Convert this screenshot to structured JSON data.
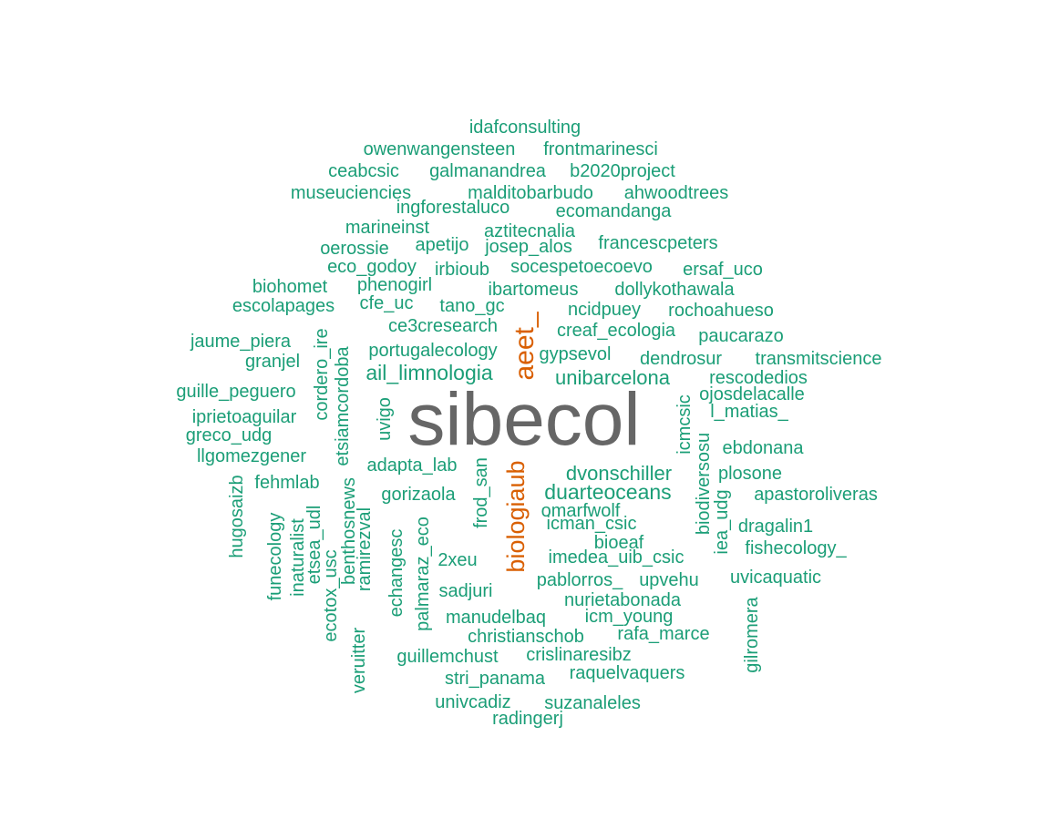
{
  "colors": {
    "large": "#666666",
    "medium": "#d95f02",
    "small": "#1b9e77"
  },
  "words": [
    {
      "text": "sibecol",
      "group": "large"
    },
    {
      "text": "aeet_",
      "group": "medium"
    },
    {
      "text": "biologiaub",
      "group": "medium"
    },
    {
      "text": "idafconsulting",
      "group": "small"
    },
    {
      "text": "owenwangensteen",
      "group": "small"
    },
    {
      "text": "frontmarinesci",
      "group": "small"
    },
    {
      "text": "ceabcsic",
      "group": "small"
    },
    {
      "text": "galmanandrea",
      "group": "small"
    },
    {
      "text": "b2020project",
      "group": "small"
    },
    {
      "text": "museuciencies",
      "group": "small"
    },
    {
      "text": "malditobarbudo",
      "group": "small"
    },
    {
      "text": "ahwoodtrees",
      "group": "small"
    },
    {
      "text": "ingforestaluco",
      "group": "small"
    },
    {
      "text": "ecomandanga",
      "group": "small"
    },
    {
      "text": "marineinst",
      "group": "small"
    },
    {
      "text": "aztitecnalia",
      "group": "small"
    },
    {
      "text": "oerossie",
      "group": "small"
    },
    {
      "text": "apetijo",
      "group": "small"
    },
    {
      "text": "josep_alos",
      "group": "small"
    },
    {
      "text": "francescpeters",
      "group": "small"
    },
    {
      "text": "eco_godoy",
      "group": "small"
    },
    {
      "text": "irbioub",
      "group": "small"
    },
    {
      "text": "socespetoecoevo",
      "group": "small"
    },
    {
      "text": "ersaf_uco",
      "group": "small"
    },
    {
      "text": "biohomet",
      "group": "small"
    },
    {
      "text": "phenogirl",
      "group": "small"
    },
    {
      "text": "ibartomeus",
      "group": "small"
    },
    {
      "text": "dollykothawala",
      "group": "small"
    },
    {
      "text": "escolapages",
      "group": "small"
    },
    {
      "text": "cfe_uc",
      "group": "small"
    },
    {
      "text": "tano_gc",
      "group": "small"
    },
    {
      "text": "ncidpuey",
      "group": "small"
    },
    {
      "text": "rochoahueso",
      "group": "small"
    },
    {
      "text": "ce3cresearch",
      "group": "small"
    },
    {
      "text": "creaf_ecologia",
      "group": "small"
    },
    {
      "text": "paucarazo",
      "group": "small"
    },
    {
      "text": "jaume_piera",
      "group": "small"
    },
    {
      "text": "portugalecology",
      "group": "small"
    },
    {
      "text": "gypsevol",
      "group": "small"
    },
    {
      "text": "dendrosur",
      "group": "small"
    },
    {
      "text": "transmitscience",
      "group": "small"
    },
    {
      "text": "granjel",
      "group": "small"
    },
    {
      "text": "ail_limnologia",
      "group": "small"
    },
    {
      "text": "unibarcelona",
      "group": "small"
    },
    {
      "text": "rescodedios",
      "group": "small"
    },
    {
      "text": "guille_peguero",
      "group": "small"
    },
    {
      "text": "ojosdelacalle",
      "group": "small"
    },
    {
      "text": "iprietoaguilar",
      "group": "small"
    },
    {
      "text": "l_matias_",
      "group": "small"
    },
    {
      "text": "greco_udg",
      "group": "small"
    },
    {
      "text": "ebdonana",
      "group": "small"
    },
    {
      "text": "llgomezgener",
      "group": "small"
    },
    {
      "text": "adapta_lab",
      "group": "small"
    },
    {
      "text": "dvonschiller",
      "group": "small"
    },
    {
      "text": "plosone",
      "group": "small"
    },
    {
      "text": "fehmlab",
      "group": "small"
    },
    {
      "text": "gorizaola",
      "group": "small"
    },
    {
      "text": "duarteoceans",
      "group": "small"
    },
    {
      "text": "apastoroliveras",
      "group": "small"
    },
    {
      "text": "omarfwolf",
      "group": "small"
    },
    {
      "text": "icman_csic",
      "group": "small"
    },
    {
      "text": "dragalin1",
      "group": "small"
    },
    {
      "text": "bioeaf",
      "group": "small"
    },
    {
      "text": "fishecology_",
      "group": "small"
    },
    {
      "text": "2xeu",
      "group": "small"
    },
    {
      "text": "imedea_uib_csic",
      "group": "small"
    },
    {
      "text": "pablorros_",
      "group": "small"
    },
    {
      "text": "upvehu",
      "group": "small"
    },
    {
      "text": "uvicaquatic",
      "group": "small"
    },
    {
      "text": "sadjuri",
      "group": "small"
    },
    {
      "text": "nurietabonada",
      "group": "small"
    },
    {
      "text": "manudelbaq",
      "group": "small"
    },
    {
      "text": "icm_young",
      "group": "small"
    },
    {
      "text": "christianschob",
      "group": "small"
    },
    {
      "text": "rafa_marce",
      "group": "small"
    },
    {
      "text": "guillemchust",
      "group": "small"
    },
    {
      "text": "crislinaresibz",
      "group": "small"
    },
    {
      "text": "stri_panama",
      "group": "small"
    },
    {
      "text": "raquelvaquers",
      "group": "small"
    },
    {
      "text": "univcadiz",
      "group": "small"
    },
    {
      "text": "suzanaleles",
      "group": "small"
    },
    {
      "text": "radingerj",
      "group": "small"
    },
    {
      "text": "cordero_ire",
      "group": "small"
    },
    {
      "text": "etsiamcordoba",
      "group": "small"
    },
    {
      "text": "uvigo",
      "group": "small"
    },
    {
      "text": "frod_san",
      "group": "small"
    },
    {
      "text": "icmcsic",
      "group": "small"
    },
    {
      "text": "biodiversosu",
      "group": "small"
    },
    {
      "text": "iea_udg",
      "group": "small"
    },
    {
      "text": "hugosaizb",
      "group": "small"
    },
    {
      "text": "funecology",
      "group": "small"
    },
    {
      "text": "inaturalist",
      "group": "small"
    },
    {
      "text": "etsea_udl",
      "group": "small"
    },
    {
      "text": "ecotox_usc",
      "group": "small"
    },
    {
      "text": "benthosnews",
      "group": "small"
    },
    {
      "text": "ramirezval",
      "group": "small"
    },
    {
      "text": "echangesc",
      "group": "small"
    },
    {
      "text": "palmaraz_eco",
      "group": "small"
    },
    {
      "text": "veruitter",
      "group": "small"
    },
    {
      "text": "gilromera",
      "group": "small"
    }
  ]
}
